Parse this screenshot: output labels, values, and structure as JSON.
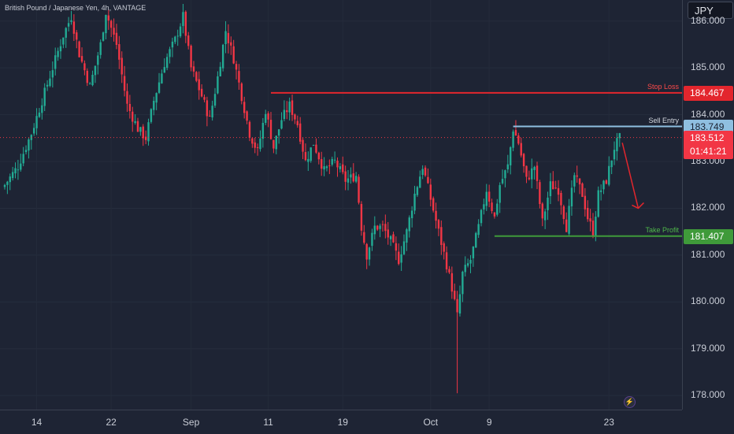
{
  "header": {
    "symbol_title": "British Pound / Japanese Yen, 4h, VANTAGE",
    "currency": "JPY"
  },
  "colors": {
    "background": "#1e2434",
    "up_candle": "#22ab94",
    "down_candle": "#f23645",
    "stop_loss": "#e3262d",
    "sell_entry": "#8fbfe0",
    "take_profit": "#3f9a3a",
    "current_price": "#f23645",
    "arrow": "#e3262d"
  },
  "icons": {
    "flash": "lightning-icon"
  },
  "chart_data": {
    "type": "candlestick",
    "title": "British Pound / Japanese Yen, 4h, VANTAGE",
    "ylim": [
      177.7,
      186.45
    ],
    "price_ticks": [
      "186.000",
      "185.000",
      "184.000",
      "183.000",
      "182.000",
      "181.000",
      "180.000",
      "179.000",
      "178.000"
    ],
    "time_ticks": [
      {
        "label": "14",
        "index": 12
      },
      {
        "label": "22",
        "index": 40
      },
      {
        "label": "Sep",
        "index": 70
      },
      {
        "label": "11",
        "index": 99
      },
      {
        "label": "19",
        "index": 127
      },
      {
        "label": "Oct",
        "index": 160
      },
      {
        "label": "9",
        "index": 182
      },
      {
        "label": "23",
        "index": 227
      }
    ],
    "close_path": [
      [
        0,
        182.5
      ],
      [
        5,
        182.9
      ],
      [
        10,
        183.6
      ],
      [
        14,
        184.3
      ],
      [
        18,
        185.0
      ],
      [
        22,
        185.7
      ],
      [
        25,
        186.1
      ],
      [
        28,
        185.3
      ],
      [
        32,
        184.6
      ],
      [
        36,
        185.5
      ],
      [
        38,
        186.2
      ],
      [
        42,
        185.5
      ],
      [
        46,
        184.2
      ],
      [
        50,
        183.7
      ],
      [
        53,
        183.5
      ],
      [
        56,
        184.3
      ],
      [
        60,
        185.1
      ],
      [
        64,
        185.6
      ],
      [
        67,
        186.1
      ],
      [
        70,
        185.0
      ],
      [
        74,
        184.4
      ],
      [
        77,
        183.9
      ],
      [
        80,
        184.8
      ],
      [
        83,
        185.8
      ],
      [
        86,
        185.2
      ],
      [
        89,
        184.4
      ],
      [
        92,
        183.6
      ],
      [
        95,
        183.2
      ],
      [
        98,
        184.1
      ],
      [
        101,
        183.3
      ],
      [
        104,
        183.9
      ],
      [
        107,
        184.2
      ],
      [
        110,
        183.8
      ],
      [
        113,
        183.0
      ],
      [
        116,
        183.4
      ],
      [
        120,
        182.8
      ],
      [
        124,
        183.0
      ],
      [
        128,
        182.6
      ],
      [
        132,
        182.7
      ],
      [
        134,
        181.6
      ],
      [
        136,
        181.0
      ],
      [
        139,
        181.6
      ],
      [
        142,
        181.6
      ],
      [
        145,
        181.3
      ],
      [
        148,
        180.9
      ],
      [
        151,
        181.5
      ],
      [
        154,
        182.3
      ],
      [
        157,
        182.9
      ],
      [
        160,
        182.2
      ],
      [
        163,
        181.5
      ],
      [
        166,
        180.8
      ],
      [
        168,
        180.3
      ],
      [
        170,
        179.7
      ],
      [
        172,
        180.6
      ],
      [
        175,
        180.9
      ],
      [
        178,
        181.6
      ],
      [
        181,
        182.4
      ],
      [
        184,
        181.8
      ],
      [
        186,
        182.5
      ],
      [
        189,
        182.9
      ],
      [
        191,
        183.7
      ],
      [
        193,
        183.4
      ],
      [
        196,
        182.6
      ],
      [
        199,
        182.9
      ],
      [
        202,
        181.7
      ],
      [
        205,
        182.5
      ],
      [
        208,
        182.4
      ],
      [
        211,
        181.6
      ],
      [
        214,
        182.7
      ],
      [
        217,
        182.3
      ],
      [
        219,
        181.8
      ],
      [
        221,
        181.5
      ],
      [
        223,
        182.3
      ],
      [
        226,
        182.6
      ],
      [
        229,
        183.3
      ],
      [
        231,
        183.5
      ]
    ],
    "last_price": 183.512,
    "countdown": "01:41:21",
    "levels": {
      "stop_loss": {
        "label": "Stop Loss",
        "price": 184.467,
        "price_text": "184.467",
        "from_index": 100
      },
      "sell_entry": {
        "label": "Sell Entry",
        "price": 183.749,
        "price_text": "183.749",
        "from_index": 191
      },
      "take_profit": {
        "label": "Take Profit",
        "price": 181.407,
        "price_text": "181.407",
        "from_index": 184
      }
    },
    "arrow": {
      "from": [
        232,
        183.4
      ],
      "to": [
        238,
        182.0
      ]
    }
  }
}
